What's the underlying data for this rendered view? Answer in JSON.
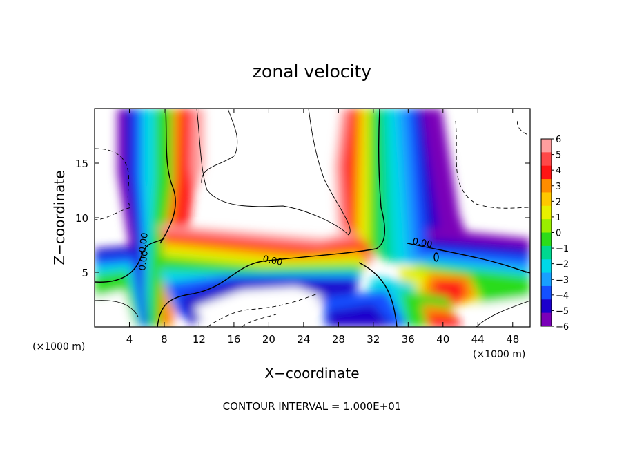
{
  "chart_data": {
    "type": "heatmap",
    "title": "zonal velocity",
    "xlabel": "X−coordinate",
    "ylabel": "Z−coordinate",
    "x_unit_left": "(×1000 m)",
    "x_unit_right": "(×1000 m)",
    "xlim": [
      0,
      50
    ],
    "ylim": [
      0,
      20
    ],
    "x_ticks": [
      4,
      8,
      12,
      16,
      20,
      24,
      28,
      32,
      36,
      40,
      44,
      48
    ],
    "y_ticks": [
      5,
      10,
      15
    ],
    "footer": "CONTOUR INTERVAL = 1.000E+01",
    "colorbar": {
      "labels": [
        "6",
        "5",
        "4",
        "3",
        "2",
        "1",
        "0",
        "−1",
        "−2",
        "−3",
        "−4",
        "−5",
        "−6"
      ],
      "values": [
        6,
        5,
        4,
        3,
        2,
        1,
        0,
        -1,
        -2,
        -3,
        -4,
        -5,
        -6
      ],
      "colors": [
        "#ff9e9e",
        "#ff4848",
        "#ff1414",
        "#ff8c00",
        "#ffc800",
        "#e8f000",
        "#9aee00",
        "#2cdc1a",
        "#00d890",
        "#00d8e8",
        "#18a0ff",
        "#1450ff",
        "#1c00cc",
        "#7a00b8"
      ]
    },
    "contour_labels": [
      "0.00",
      "0.00",
      "0.00",
      "0.00"
    ]
  }
}
